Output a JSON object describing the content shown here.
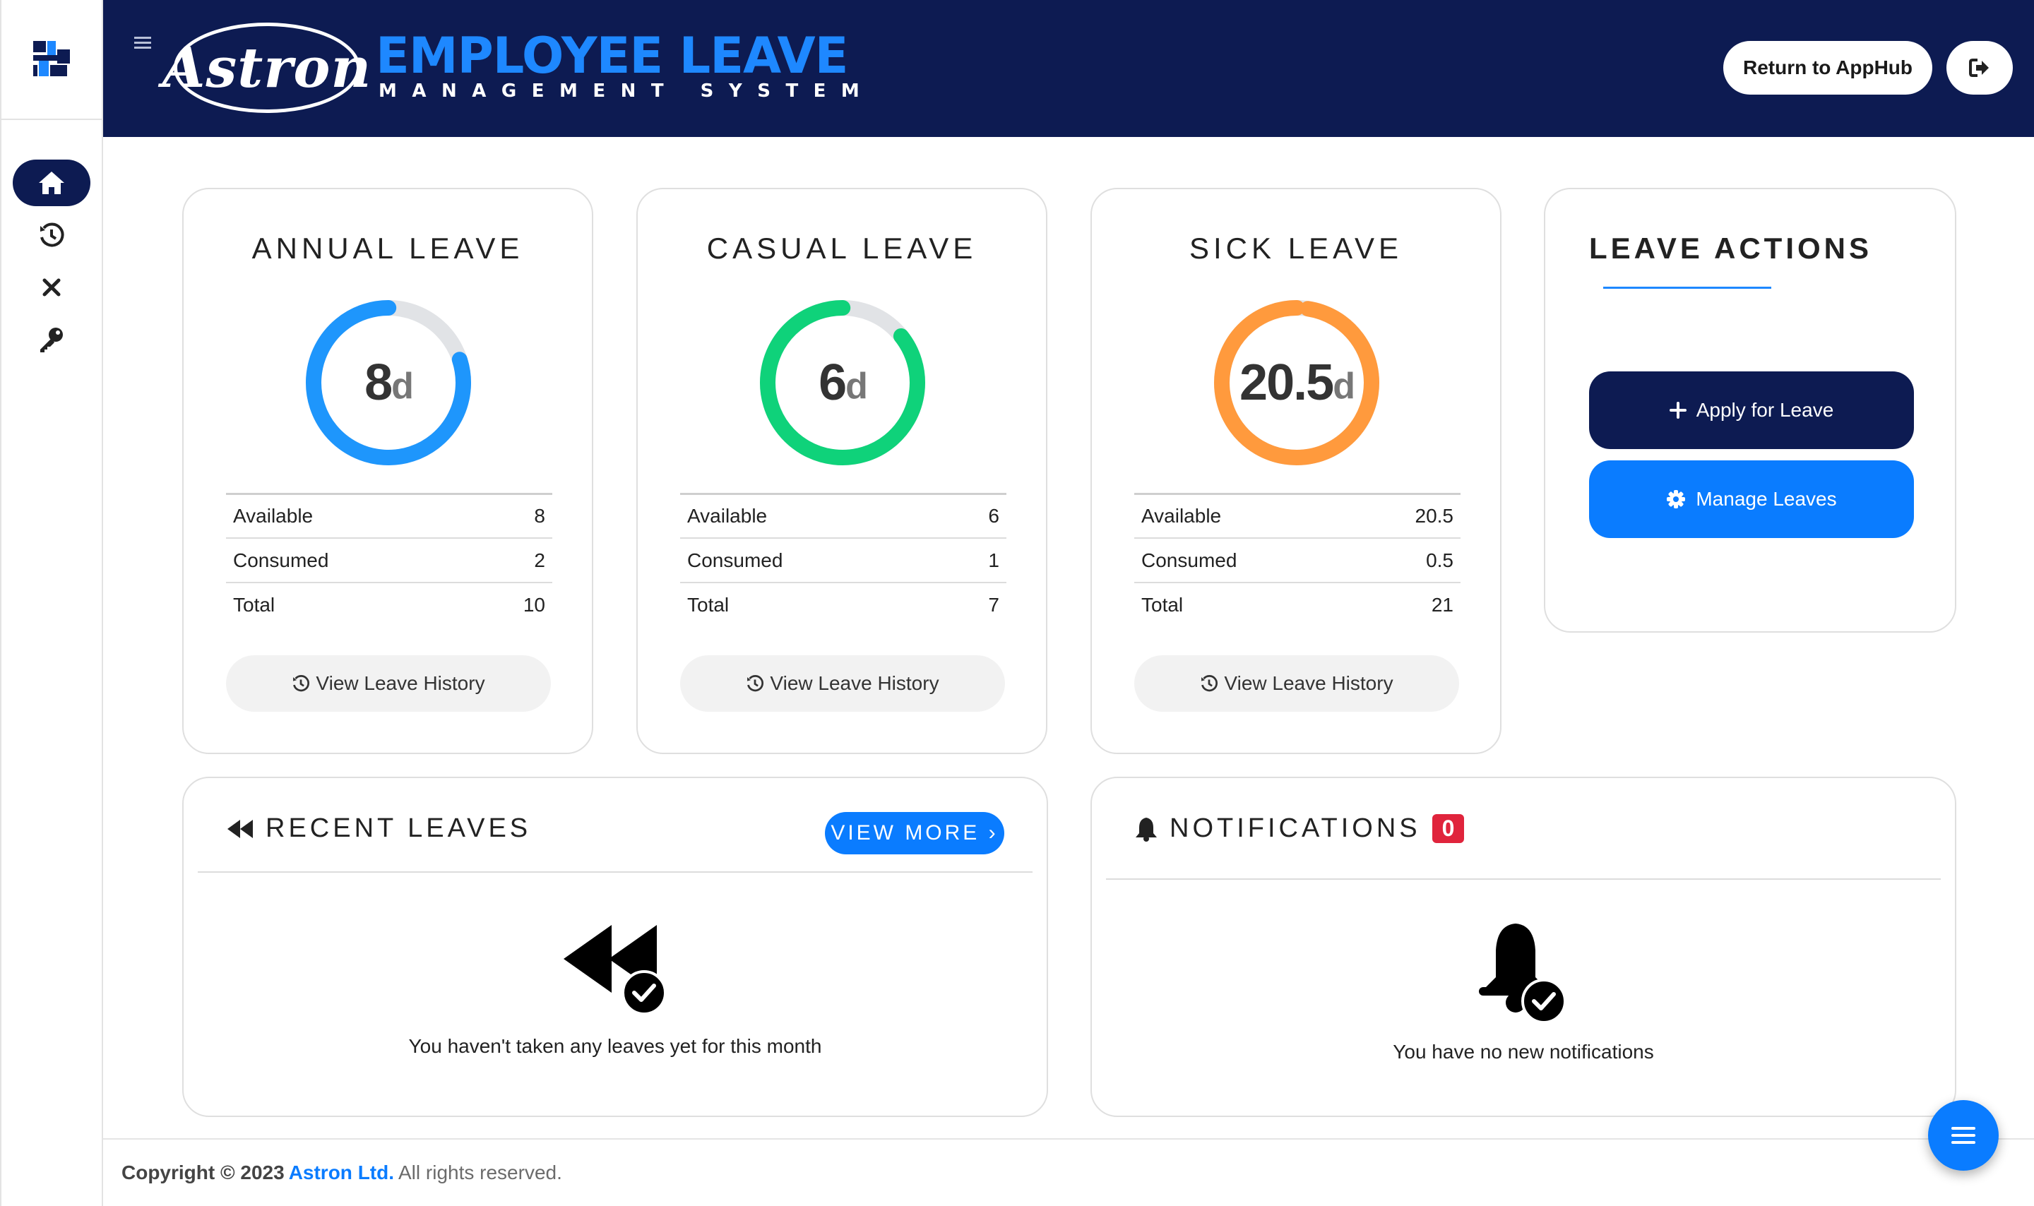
{
  "app": {
    "logo_text": "Astron",
    "title": "EMPLOYEE LEAVE",
    "subtitle": "MANAGEMENT SYSTEM",
    "return_label": "Return to AppHub"
  },
  "sidebar": {
    "items": [
      {
        "name": "home",
        "icon": "home-icon",
        "active": true
      },
      {
        "name": "history",
        "icon": "history-icon",
        "active": false
      },
      {
        "name": "cancel",
        "icon": "close-icon",
        "active": false
      },
      {
        "name": "password",
        "icon": "key-icon",
        "active": false
      }
    ]
  },
  "leaves": [
    {
      "title": "ANNUAL LEAVE",
      "value": "8",
      "unit": "d",
      "color": "#1e96fc",
      "fraction": 0.8,
      "rows": [
        {
          "label": "Available",
          "value": "8"
        },
        {
          "label": "Consumed",
          "value": "2"
        },
        {
          "label": "Total",
          "value": "10"
        }
      ],
      "history_label": "View Leave History"
    },
    {
      "title": "CASUAL LEAVE",
      "value": "6",
      "unit": "d",
      "color": "#0fd27a",
      "fraction": 0.857,
      "rows": [
        {
          "label": "Available",
          "value": "6"
        },
        {
          "label": "Consumed",
          "value": "1"
        },
        {
          "label": "Total",
          "value": "7"
        }
      ],
      "history_label": "View Leave History"
    },
    {
      "title": "SICK LEAVE",
      "value": "20.5",
      "unit": "d",
      "color": "#ff9a3d",
      "fraction": 0.976,
      "rows": [
        {
          "label": "Available",
          "value": "20.5"
        },
        {
          "label": "Consumed",
          "value": "0.5"
        },
        {
          "label": "Total",
          "value": "21"
        }
      ],
      "history_label": "View Leave History"
    }
  ],
  "actions": {
    "title": "LEAVE ACTIONS",
    "apply_label": "Apply for Leave",
    "manage_label": "Manage Leaves"
  },
  "recent": {
    "title": "RECENT LEAVES",
    "view_more_label": "VIEW MORE",
    "empty_text": "You haven't taken any leaves yet for this month"
  },
  "notifications": {
    "title": "NOTIFICATIONS",
    "count": "0",
    "empty_text": "You have no new notifications"
  },
  "footer": {
    "prefix": "Copyright © 2023",
    "company": "Astron Ltd.",
    "suffix": "All rights reserved."
  },
  "colors": {
    "navy": "#0d1b52",
    "accent": "#0a7cff",
    "badge": "#e0243c"
  }
}
